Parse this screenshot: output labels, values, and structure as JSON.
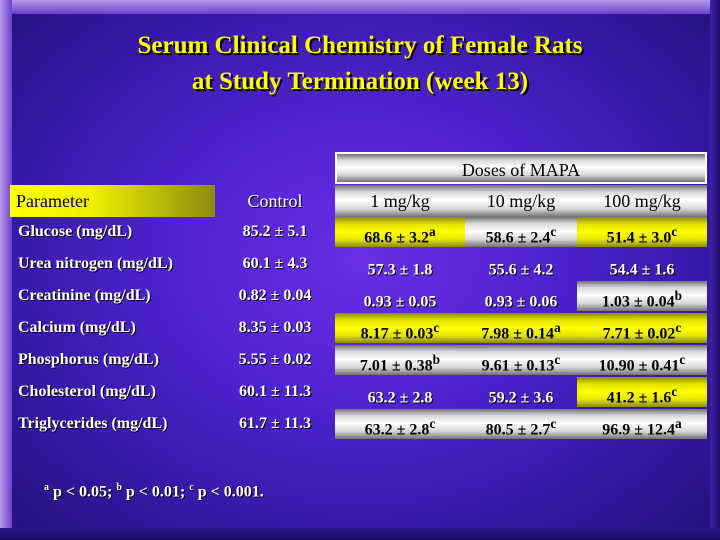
{
  "title": {
    "line1": "Serum Clinical Chemistry of Female Rats",
    "line2": "at Study Termination (week 13)"
  },
  "table": {
    "group_header": "Doses of MAPA",
    "columns": [
      "Parameter",
      "Control",
      "1 mg/kg",
      "10 mg/kg",
      "100 mg/kg"
    ],
    "rows": [
      {
        "param": "Glucose (mg/dL)",
        "control": "85.2 ± 5.1",
        "d1": "68.6 ± 3.2",
        "d1_sup": "a",
        "d10": "58.6 ± 2.4",
        "d10_sup": "c",
        "d100": "51.4 ± 3.0",
        "d100_sup": "c"
      },
      {
        "param": "Urea nitrogen (mg/dL)",
        "control": "60.1 ± 4.3",
        "d1": "57.3 ± 1.8",
        "d1_sup": "",
        "d10": "55.6 ± 4.2",
        "d10_sup": "",
        "d100": "54.4 ± 1.6",
        "d100_sup": ""
      },
      {
        "param": "Creatinine (mg/dL)",
        "control": "0.82 ± 0.04",
        "d1": "0.93 ± 0.05",
        "d1_sup": "",
        "d10": "0.93 ± 0.06",
        "d10_sup": "",
        "d100": "1.03 ± 0.04",
        "d100_sup": "b"
      },
      {
        "param": "Calcium (mg/dL)",
        "control": "8.35 ± 0.03",
        "d1": "8.17 ± 0.03",
        "d1_sup": "c",
        "d10": "7.98 ± 0.14",
        "d10_sup": "a",
        "d100": "7.71 ± 0.02",
        "d100_sup": "c"
      },
      {
        "param": "Phosphorus (mg/dL)",
        "control": "5.55 ± 0.02",
        "d1": "7.01 ± 0.38",
        "d1_sup": "b",
        "d10": "9.61 ± 0.13",
        "d10_sup": "c",
        "d100": "10.90 ± 0.41",
        "d100_sup": "c"
      },
      {
        "param": "Cholesterol (mg/dL)",
        "control": "60.1 ± 11.3",
        "d1": "63.2 ± 2.8",
        "d1_sup": "",
        "d10": "59.2 ± 3.6",
        "d10_sup": "",
        "d100": "41.2 ± 1.6",
        "d100_sup": "c"
      },
      {
        "param": "Triglycerides (mg/dL)",
        "control": "61.7 ± 11.3",
        "d1": "63.2 ± 2.8",
        "d1_sup": "c",
        "d10": "80.5 ± 2.7",
        "d10_sup": "c",
        "d100": "96.9 ± 12.4",
        "d100_sup": "a"
      }
    ]
  },
  "footnote": {
    "a_mark": "a",
    "a_text": " p < 0.05; ",
    "b_mark": "b",
    "b_text": " p < 0.01; ",
    "c_mark": "c",
    "c_text": " p < 0.001."
  },
  "colors": {
    "background": "#4f22d0",
    "title": "#ffff00",
    "highlight": "#ffff00",
    "silver_bar": "#ffffff"
  }
}
